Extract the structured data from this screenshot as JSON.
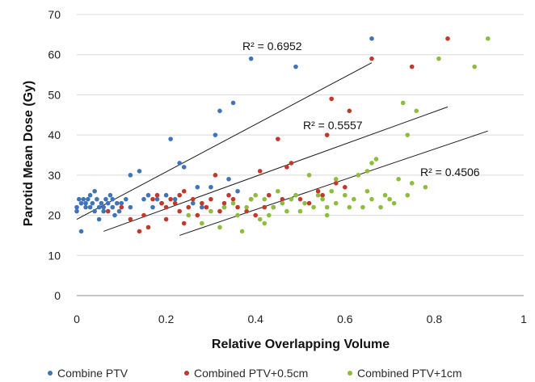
{
  "chart_data": {
    "type": "scatter",
    "title": "",
    "xlabel": "Relative Overlapping Volume",
    "ylabel": "Parotid Mean Dose (Gy)",
    "xlim": [
      0,
      1
    ],
    "ylim": [
      0,
      70
    ],
    "x_ticks": [
      "0",
      "0.2",
      "0.4",
      "0.6",
      "0.8",
      "1"
    ],
    "y_ticks": [
      "0",
      "10",
      "20",
      "30",
      "40",
      "50",
      "60",
      "70"
    ],
    "grid": "horizontal",
    "legend_position": "bottom",
    "series": [
      {
        "name": "Combine PTV",
        "color": "#3f75b8",
        "points": [
          [
            0.0,
            21
          ],
          [
            0.0,
            22
          ],
          [
            0.005,
            24
          ],
          [
            0.01,
            16
          ],
          [
            0.01,
            23
          ],
          [
            0.015,
            24
          ],
          [
            0.02,
            22
          ],
          [
            0.02,
            23
          ],
          [
            0.025,
            24
          ],
          [
            0.03,
            25
          ],
          [
            0.03,
            22
          ],
          [
            0.035,
            23
          ],
          [
            0.04,
            26
          ],
          [
            0.04,
            21
          ],
          [
            0.045,
            24
          ],
          [
            0.05,
            22
          ],
          [
            0.05,
            19
          ],
          [
            0.055,
            23
          ],
          [
            0.06,
            21
          ],
          [
            0.06,
            22
          ],
          [
            0.065,
            24
          ],
          [
            0.07,
            23
          ],
          [
            0.075,
            25
          ],
          [
            0.08,
            22
          ],
          [
            0.08,
            24
          ],
          [
            0.085,
            20
          ],
          [
            0.09,
            23
          ],
          [
            0.095,
            21
          ],
          [
            0.1,
            23
          ],
          [
            0.11,
            24
          ],
          [
            0.12,
            22
          ],
          [
            0.12,
            30
          ],
          [
            0.14,
            31
          ],
          [
            0.15,
            24
          ],
          [
            0.16,
            25
          ],
          [
            0.17,
            22
          ],
          [
            0.18,
            24
          ],
          [
            0.19,
            23
          ],
          [
            0.2,
            25
          ],
          [
            0.21,
            39
          ],
          [
            0.22,
            24
          ],
          [
            0.23,
            33
          ],
          [
            0.24,
            32
          ],
          [
            0.26,
            23
          ],
          [
            0.27,
            27
          ],
          [
            0.28,
            22
          ],
          [
            0.3,
            27
          ],
          [
            0.31,
            40
          ],
          [
            0.32,
            46
          ],
          [
            0.33,
            22
          ],
          [
            0.34,
            29
          ],
          [
            0.35,
            48
          ],
          [
            0.36,
            26
          ],
          [
            0.39,
            59
          ],
          [
            0.49,
            57
          ],
          [
            0.66,
            64
          ]
        ],
        "trend": {
          "x": [
            0.0,
            0.66
          ],
          "y": [
            19,
            58
          ],
          "r2": "R² = 0.6952"
        }
      },
      {
        "name": "Combined PTV+0.5cm",
        "color": "#c0392b",
        "points": [
          [
            0.07,
            21
          ],
          [
            0.1,
            22
          ],
          [
            0.12,
            19
          ],
          [
            0.14,
            16
          ],
          [
            0.15,
            20
          ],
          [
            0.16,
            17
          ],
          [
            0.17,
            24
          ],
          [
            0.18,
            25
          ],
          [
            0.19,
            23
          ],
          [
            0.2,
            19
          ],
          [
            0.2,
            22
          ],
          [
            0.21,
            24
          ],
          [
            0.22,
            23
          ],
          [
            0.23,
            25
          ],
          [
            0.23,
            21
          ],
          [
            0.24,
            26
          ],
          [
            0.24,
            18
          ],
          [
            0.25,
            22
          ],
          [
            0.26,
            24
          ],
          [
            0.27,
            20
          ],
          [
            0.28,
            23
          ],
          [
            0.29,
            22
          ],
          [
            0.3,
            24
          ],
          [
            0.31,
            30
          ],
          [
            0.32,
            21
          ],
          [
            0.33,
            23
          ],
          [
            0.34,
            25
          ],
          [
            0.35,
            24
          ],
          [
            0.36,
            22
          ],
          [
            0.38,
            21
          ],
          [
            0.39,
            24
          ],
          [
            0.4,
            20
          ],
          [
            0.41,
            31
          ],
          [
            0.42,
            22
          ],
          [
            0.43,
            25
          ],
          [
            0.44,
            22
          ],
          [
            0.45,
            39
          ],
          [
            0.46,
            24
          ],
          [
            0.47,
            32
          ],
          [
            0.48,
            33
          ],
          [
            0.5,
            24
          ],
          [
            0.52,
            23
          ],
          [
            0.54,
            26
          ],
          [
            0.55,
            25
          ],
          [
            0.56,
            40
          ],
          [
            0.57,
            49
          ],
          [
            0.58,
            28
          ],
          [
            0.6,
            27
          ],
          [
            0.61,
            46
          ],
          [
            0.66,
            59
          ],
          [
            0.75,
            57
          ],
          [
            0.83,
            64
          ]
        ],
        "trend": {
          "x": [
            0.06,
            0.83
          ],
          "y": [
            16,
            47
          ],
          "r2": "R² = 0.5557"
        }
      },
      {
        "name": "Combined PTV+1cm",
        "color": "#8dbd3c",
        "points": [
          [
            0.25,
            20
          ],
          [
            0.28,
            18
          ],
          [
            0.3,
            21
          ],
          [
            0.32,
            17
          ],
          [
            0.33,
            22
          ],
          [
            0.35,
            23
          ],
          [
            0.36,
            20
          ],
          [
            0.37,
            16
          ],
          [
            0.38,
            22
          ],
          [
            0.39,
            24
          ],
          [
            0.4,
            25
          ],
          [
            0.41,
            19
          ],
          [
            0.42,
            18
          ],
          [
            0.42,
            24
          ],
          [
            0.43,
            20
          ],
          [
            0.44,
            22
          ],
          [
            0.45,
            26
          ],
          [
            0.46,
            23
          ],
          [
            0.47,
            21
          ],
          [
            0.48,
            24
          ],
          [
            0.49,
            25
          ],
          [
            0.5,
            21
          ],
          [
            0.51,
            23
          ],
          [
            0.52,
            30
          ],
          [
            0.53,
            22
          ],
          [
            0.54,
            25
          ],
          [
            0.55,
            24
          ],
          [
            0.56,
            22
          ],
          [
            0.56,
            20
          ],
          [
            0.57,
            26
          ],
          [
            0.58,
            23
          ],
          [
            0.58,
            29
          ],
          [
            0.6,
            25
          ],
          [
            0.61,
            22
          ],
          [
            0.62,
            24
          ],
          [
            0.63,
            30
          ],
          [
            0.64,
            22
          ],
          [
            0.65,
            26
          ],
          [
            0.65,
            31
          ],
          [
            0.66,
            24
          ],
          [
            0.66,
            33
          ],
          [
            0.67,
            34
          ],
          [
            0.68,
            22
          ],
          [
            0.69,
            25
          ],
          [
            0.7,
            24
          ],
          [
            0.71,
            23
          ],
          [
            0.72,
            29
          ],
          [
            0.73,
            48
          ],
          [
            0.74,
            40
          ],
          [
            0.74,
            25
          ],
          [
            0.75,
            28
          ],
          [
            0.76,
            46
          ],
          [
            0.78,
            27
          ],
          [
            0.81,
            59
          ],
          [
            0.89,
            57
          ],
          [
            0.92,
            64
          ]
        ],
        "trend": {
          "x": [
            0.23,
            0.92
          ],
          "y": [
            15,
            41
          ],
          "r2": "R² = 0.4506"
        }
      }
    ]
  }
}
